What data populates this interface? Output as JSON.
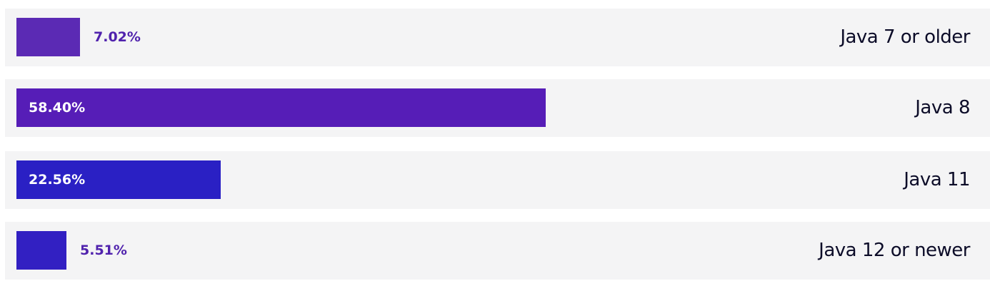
{
  "chart_data": {
    "type": "bar",
    "orientation": "horizontal",
    "categories": [
      "Java 7 or older",
      "Java 8",
      "Java 11",
      "Java 12 or newer"
    ],
    "values": [
      7.02,
      58.4,
      22.56,
      5.51
    ],
    "value_labels": [
      "7.02%",
      "58.40%",
      "22.56%",
      "5.51%"
    ],
    "colors": [
      "#5b2ab4",
      "#561db7",
      "#2a20c4",
      "#3220c2"
    ],
    "value_color_outside": "#5022ad",
    "value_color_inside": "#ffffff",
    "row_background": "#f4f4f5",
    "grid": false,
    "legend": "none"
  }
}
